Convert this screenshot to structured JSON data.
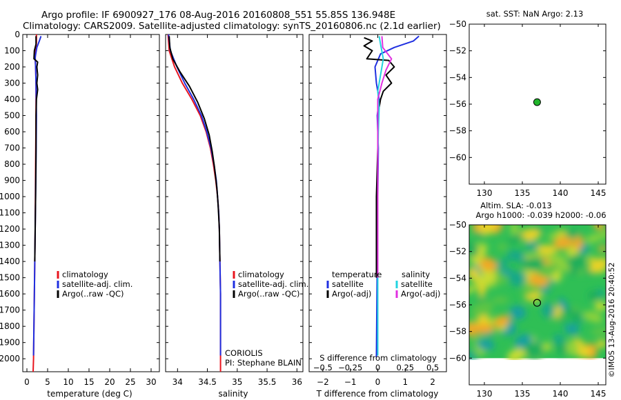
{
  "header": {
    "title": "Argo profile: IF 6900927_176 08-Aug-2016 20160808_551 55.85S 136.948E",
    "subtitle": "Climatology: CARS2009. Satellite-adjusted climatology: synTS_20160806.nc (2.1d earlier)"
  },
  "colors": {
    "climatology": "#e8141e",
    "satellite": "#1f2fe0",
    "argo": "#000000",
    "salinity_satellite": "#22d4e0",
    "salinity_argo": "#e030e0",
    "float_marker": "#21b42b"
  },
  "legend_profile": {
    "items": [
      {
        "label": "climatology",
        "color": "#e8141e"
      },
      {
        "label": "satellite-adj. clim.",
        "color": "#1f2fe0"
      },
      {
        "label": "Argo(..raw -QC)",
        "color": "#000000"
      }
    ]
  },
  "legend_diff": {
    "temperature_header": "temperature",
    "salinity_header": "salinity",
    "temperature_items": [
      {
        "label": "satellite",
        "color": "#1f2fe0"
      },
      {
        "label": "Argo(-adj)",
        "color": "#000000"
      }
    ],
    "salinity_items": [
      {
        "label": "satellite",
        "color": "#22d4e0"
      },
      {
        "label": "Argo(-adj)",
        "color": "#e030e0"
      }
    ]
  },
  "annotations": {
    "data_centre": "CORIOLIS",
    "pi": "PI: Stephane BLAIN",
    "sst_title": "sat. SST: NaN Argo: 2.13",
    "sla_title_1": "Altim. SLA: -0.013",
    "sla_title_2": "Argo h1000: -0.039 h2000: -0.06",
    "imos_stamp": "©IMOS 13-Aug-2016 20:40:52"
  },
  "chart_data": [
    {
      "type": "line",
      "panel": "temperature",
      "xlabel": "temperature (deg C)",
      "ylabel": "",
      "xlim": [
        -1,
        32
      ],
      "ylim": [
        2080,
        0
      ],
      "xticks": [
        0,
        5,
        10,
        15,
        20,
        25,
        30
      ],
      "yticks": [
        0,
        100,
        200,
        300,
        400,
        500,
        600,
        700,
        800,
        900,
        1000,
        1100,
        1200,
        1300,
        1400,
        1500,
        1600,
        1700,
        1800,
        1900,
        2000
      ],
      "series": [
        {
          "name": "climatology",
          "color": "#e8141e",
          "points": [
            [
              2.3,
              0
            ],
            [
              2.3,
              50
            ],
            [
              2.1,
              100
            ],
            [
              2.0,
              150
            ],
            [
              2.1,
              200
            ],
            [
              2.2,
              300
            ],
            [
              2.2,
              500
            ],
            [
              2.1,
              800
            ],
            [
              2.0,
              1200
            ],
            [
              1.8,
              1600
            ],
            [
              1.6,
              2000
            ],
            [
              1.5,
              2080
            ]
          ]
        },
        {
          "name": "satellite-adj. clim.",
          "color": "#1f2fe0",
          "points": [
            [
              3.4,
              10
            ],
            [
              3.0,
              40
            ],
            [
              2.4,
              80
            ],
            [
              2.0,
              140
            ],
            [
              2.1,
              200
            ],
            [
              2.2,
              300
            ],
            [
              2.3,
              500
            ],
            [
              2.2,
              800
            ],
            [
              2.0,
              1200
            ],
            [
              1.8,
              1600
            ],
            [
              1.6,
              1980
            ]
          ]
        },
        {
          "name": "Argo(..raw -QC)",
          "color": "#000000",
          "points": [
            [
              2.2,
              10
            ],
            [
              2.2,
              60
            ],
            [
              1.8,
              100
            ],
            [
              1.7,
              150
            ],
            [
              2.6,
              170
            ],
            [
              2.4,
              200
            ],
            [
              2.6,
              250
            ],
            [
              2.4,
              300
            ],
            [
              2.6,
              340
            ],
            [
              2.3,
              400
            ],
            [
              2.2,
              500
            ],
            [
              2.2,
              700
            ],
            [
              2.1,
              1000
            ],
            [
              1.9,
              1400
            ]
          ]
        }
      ]
    },
    {
      "type": "line",
      "panel": "salinity",
      "xlabel": "salinity",
      "xlim": [
        33.8,
        36.1
      ],
      "ylim": [
        2080,
        0
      ],
      "xticks": [
        34,
        34.5,
        35,
        35.5,
        36
      ],
      "series": [
        {
          "name": "climatology",
          "color": "#e8141e",
          "points": [
            [
              33.84,
              0
            ],
            [
              33.86,
              100
            ],
            [
              33.95,
              200
            ],
            [
              34.08,
              300
            ],
            [
              34.24,
              400
            ],
            [
              34.38,
              500
            ],
            [
              34.48,
              600
            ],
            [
              34.55,
              700
            ],
            [
              34.6,
              800
            ],
            [
              34.64,
              900
            ],
            [
              34.67,
              1000
            ],
            [
              34.69,
              1100
            ],
            [
              34.7,
              1200
            ],
            [
              34.71,
              1400
            ],
            [
              34.72,
              1600
            ],
            [
              34.72,
              1800
            ],
            [
              34.72,
              2080
            ]
          ]
        },
        {
          "name": "satellite-adj. clim.",
          "color": "#1f2fe0",
          "points": [
            [
              33.85,
              0
            ],
            [
              33.88,
              100
            ],
            [
              33.99,
              200
            ],
            [
              34.12,
              300
            ],
            [
              34.27,
              400
            ],
            [
              34.4,
              500
            ],
            [
              34.49,
              600
            ],
            [
              34.56,
              700
            ],
            [
              34.61,
              800
            ],
            [
              34.65,
              900
            ],
            [
              34.67,
              1000
            ],
            [
              34.69,
              1100
            ],
            [
              34.7,
              1200
            ],
            [
              34.71,
              1400
            ],
            [
              34.72,
              1600
            ],
            [
              34.72,
              1800
            ],
            [
              34.72,
              1980
            ]
          ]
        },
        {
          "name": "Argo(..raw -QC)",
          "color": "#000000",
          "points": [
            [
              33.86,
              10
            ],
            [
              33.87,
              80
            ],
            [
              33.92,
              150
            ],
            [
              34.04,
              230
            ],
            [
              34.2,
              320
            ],
            [
              34.34,
              420
            ],
            [
              34.45,
              520
            ],
            [
              34.53,
              620
            ],
            [
              34.58,
              720
            ],
            [
              34.62,
              820
            ],
            [
              34.66,
              950
            ],
            [
              34.68,
              1050
            ],
            [
              34.7,
              1200
            ],
            [
              34.71,
              1400
            ]
          ]
        }
      ]
    },
    {
      "type": "line",
      "panel": "difference",
      "xlabel": "T difference from climatology",
      "xlabel_top": "S difference from climatology",
      "xlim": [
        -2.5,
        2.5
      ],
      "ylim": [
        2080,
        0
      ],
      "xticks": [
        -2,
        -1,
        0,
        1,
        2
      ],
      "xticks_salinity": [
        -0.5,
        -0.25,
        0,
        0.25,
        0.5
      ],
      "series": [
        {
          "name": "satellite (T)",
          "color": "#1f2fe0",
          "points": [
            [
              1.5,
              10
            ],
            [
              1.3,
              40
            ],
            [
              0.6,
              80
            ],
            [
              0.1,
              120
            ],
            [
              -0.1,
              200
            ],
            [
              -0.05,
              300
            ],
            [
              0.05,
              400
            ],
            [
              -0.02,
              500
            ],
            [
              0.02,
              700
            ],
            [
              0.0,
              1000
            ],
            [
              -0.02,
              1400
            ],
            [
              -0.05,
              1990
            ]
          ]
        },
        {
          "name": "Argo(-adj) (T)",
          "color": "#000000",
          "points": [
            [
              -0.5,
              20
            ],
            [
              -0.2,
              40
            ],
            [
              -0.5,
              70
            ],
            [
              -0.2,
              100
            ],
            [
              -0.4,
              150
            ],
            [
              0.4,
              160
            ],
            [
              0.6,
              200
            ],
            [
              0.3,
              250
            ],
            [
              0.5,
              300
            ],
            [
              0.2,
              350
            ],
            [
              0.1,
              400
            ],
            [
              0.0,
              500
            ],
            [
              0.0,
              700
            ],
            [
              -0.05,
              1000
            ],
            [
              -0.05,
              1300
            ],
            [
              -0.05,
              1500
            ]
          ]
        },
        {
          "name": "satellite (S)",
          "color": "#22d4e0",
          "points": [
            [
              0.05,
              10
            ],
            [
              0.1,
              60
            ],
            [
              0.2,
              150
            ],
            [
              0.1,
              250
            ],
            [
              0.0,
              350
            ],
            [
              0.05,
              450
            ],
            [
              0.02,
              600
            ],
            [
              0.0,
              800
            ],
            [
              0.0,
              1200
            ],
            [
              0.0,
              1600
            ],
            [
              0.0,
              1980
            ]
          ]
        },
        {
          "name": "Argo(-adj) (S)",
          "color": "#e030e0",
          "points": [
            [
              0.15,
              10
            ],
            [
              0.18,
              80
            ],
            [
              0.5,
              150
            ],
            [
              0.3,
              220
            ],
            [
              0.15,
              300
            ],
            [
              0.0,
              400
            ],
            [
              0.0,
              600
            ],
            [
              0.0,
              900
            ],
            [
              0.0,
              1300
            ],
            [
              0.0,
              1500
            ]
          ]
        }
      ]
    },
    {
      "type": "scatter",
      "panel": "sst_map",
      "title": "sat. SST: NaN Argo: 2.13",
      "xlim": [
        128,
        146
      ],
      "ylim": [
        -62,
        -50
      ],
      "xticks": [
        130,
        135,
        140,
        145
      ],
      "yticks": [
        -50,
        -52,
        -54,
        -56,
        -58,
        -60
      ],
      "points": [
        {
          "lon": 136.948,
          "lat": -55.85
        }
      ]
    },
    {
      "type": "heatmap",
      "panel": "sla_map",
      "title": "Altim. SLA: -0.013",
      "xlim": [
        128,
        146
      ],
      "ylim": [
        -62,
        -50
      ],
      "field_lat_range": [
        -60,
        -50
      ],
      "xticks": [
        130,
        135,
        140,
        145
      ],
      "yticks": [
        -50,
        -52,
        -54,
        -56,
        -58,
        -60
      ],
      "points": [
        {
          "lon": 136.948,
          "lat": -55.85
        }
      ]
    }
  ]
}
